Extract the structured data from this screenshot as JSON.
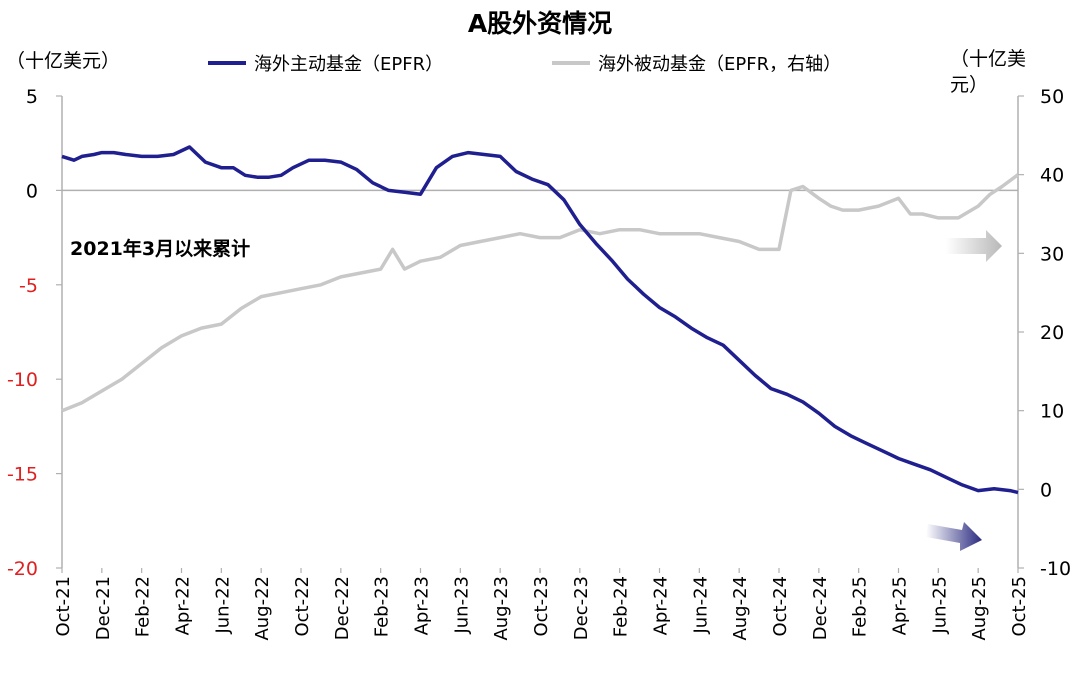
{
  "chart_data": {
    "type": "line",
    "title": "A股外资情况",
    "left_axis_unit": "（十亿美元）",
    "right_axis_unit": "（十亿美元）",
    "annotation": "2021年3月以来累计",
    "ylim_left": [
      -20,
      5
    ],
    "yticks_left": [
      5,
      0,
      -5,
      -10,
      -15,
      -20
    ],
    "ylim_right": [
      -10,
      50
    ],
    "yticks_right": [
      50,
      40,
      30,
      20,
      10,
      0,
      -10
    ],
    "x_tick_labels": [
      "Oct-21",
      "Dec-21",
      "Feb-22",
      "Apr-22",
      "Jun-22",
      "Aug-22",
      "Oct-22",
      "Dec-22",
      "Feb-23",
      "Apr-23",
      "Jun-23",
      "Aug-23",
      "Oct-23",
      "Dec-23",
      "Feb-24",
      "Apr-24",
      "Jun-24",
      "Aug-24",
      "Oct-24",
      "Dec-24",
      "Feb-25",
      "Apr-25",
      "Jun-25",
      "Aug-25",
      "Oct-25"
    ],
    "legend_position": "top",
    "grid": false,
    "colors": {
      "active": "#1f1f8f",
      "passive": "#c8c8c8",
      "negative_tick": "#e02020"
    },
    "series": [
      {
        "name": "海外主动基金（EPFR）",
        "axis": "left",
        "x": [
          0,
          0.3,
          0.5,
          0.8,
          1.0,
          1.3,
          1.6,
          2.0,
          2.4,
          2.8,
          3.2,
          3.6,
          4.0,
          4.3,
          4.6,
          4.9,
          5.2,
          5.5,
          5.8,
          6.2,
          6.6,
          7.0,
          7.4,
          7.8,
          8.2,
          8.6,
          9.0,
          9.4,
          9.8,
          10.2,
          10.6,
          11.0,
          11.4,
          11.8,
          12.2,
          12.6,
          13.0,
          13.4,
          13.8,
          14.2,
          14.6,
          15.0,
          15.4,
          15.8,
          16.2,
          16.6,
          17.0,
          17.4,
          17.8,
          18.2,
          18.6,
          19.0,
          19.4,
          19.8,
          20.2,
          20.6,
          21.0,
          21.4,
          21.8,
          22.2,
          22.6,
          23.0,
          23.4,
          23.8,
          24.0
        ],
        "values": [
          1.8,
          1.6,
          1.8,
          1.9,
          2.0,
          2.0,
          1.9,
          1.8,
          1.8,
          1.9,
          2.3,
          1.5,
          1.2,
          1.2,
          0.8,
          0.7,
          0.7,
          0.8,
          1.2,
          1.6,
          1.6,
          1.5,
          1.1,
          0.4,
          0.0,
          -0.1,
          -0.2,
          1.2,
          1.8,
          2.0,
          1.9,
          1.8,
          1.0,
          0.6,
          0.3,
          -0.5,
          -1.8,
          -2.8,
          -3.7,
          -4.7,
          -5.5,
          -6.2,
          -6.7,
          -7.3,
          -7.8,
          -8.2,
          -9.0,
          -9.8,
          -10.5,
          -10.8,
          -11.2,
          -11.8,
          -12.5,
          -13.0,
          -13.4,
          -13.8,
          -14.2,
          -14.5,
          -14.8,
          -15.2,
          -15.6,
          -15.9,
          -15.8,
          -15.9,
          -16.0
        ]
      },
      {
        "name": "海外被动基金（EPFR，右轴）",
        "axis": "right",
        "x": [
          0,
          0.5,
          1.0,
          1.5,
          2.0,
          2.5,
          3.0,
          3.5,
          4.0,
          4.5,
          5.0,
          5.5,
          6.0,
          6.5,
          7.0,
          7.5,
          8.0,
          8.3,
          8.6,
          9.0,
          9.5,
          10.0,
          10.5,
          11.0,
          11.5,
          12.0,
          12.5,
          13.0,
          13.5,
          14.0,
          14.5,
          15.0,
          15.5,
          16.0,
          16.5,
          17.0,
          17.5,
          18.0,
          18.3,
          18.6,
          19.0,
          19.3,
          19.6,
          20.0,
          20.5,
          21.0,
          21.3,
          21.6,
          22.0,
          22.5,
          23.0,
          23.3,
          23.6,
          24.0
        ],
        "values": [
          10,
          11,
          12.5,
          14,
          16,
          18,
          19.5,
          20.5,
          21,
          23,
          24.5,
          25,
          25.5,
          26,
          27,
          27.5,
          28,
          30.5,
          28,
          29,
          29.5,
          31,
          31.5,
          32,
          32.5,
          32,
          32,
          33,
          32.5,
          33,
          33,
          32.5,
          32.5,
          32.5,
          32,
          31.5,
          30.5,
          30.5,
          38,
          38.5,
          37,
          36,
          35.5,
          35.5,
          36,
          37,
          35,
          35,
          34.5,
          34.5,
          36,
          37.5,
          38.5,
          40
        ]
      }
    ]
  }
}
